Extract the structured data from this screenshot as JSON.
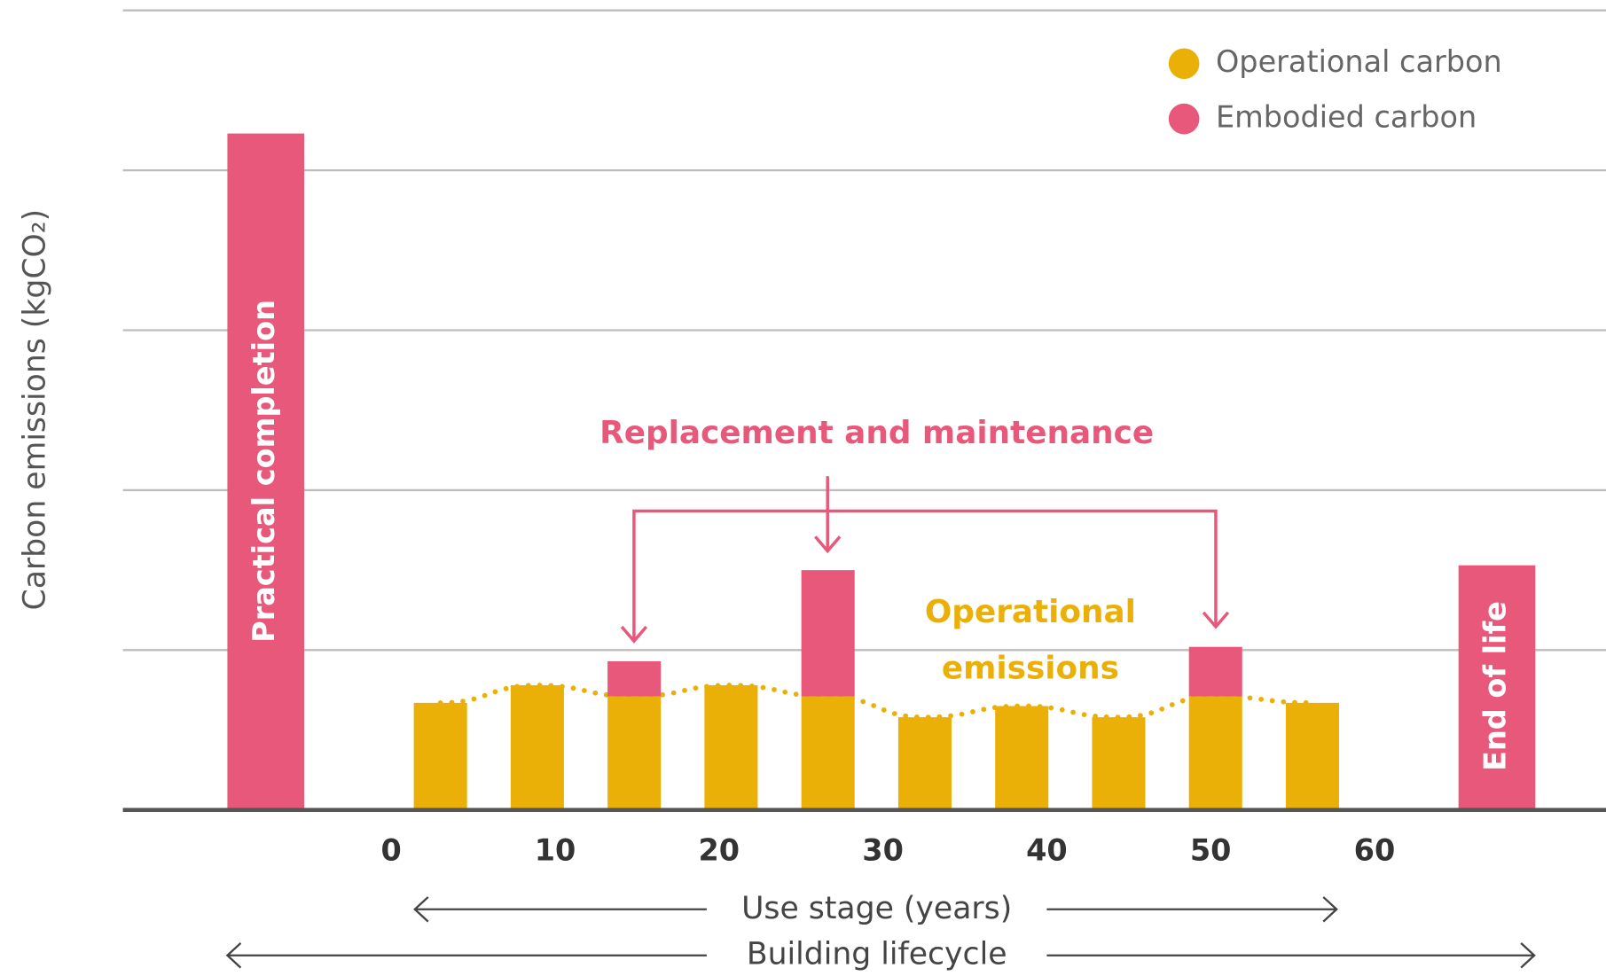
{
  "chart_data": {
    "type": "bar",
    "stacked": true,
    "ylabel": "Carbon emissions (kgCO₂)",
    "xlabel": "Use stage (years)",
    "xlabel2": "Building lifecycle",
    "categories": [
      "Practical completion",
      null,
      null,
      null,
      null,
      null,
      null,
      null,
      null,
      null,
      null,
      "End of life"
    ],
    "series": [
      {
        "name": "Operational carbon",
        "color": "#ebb008",
        "values": [
          null,
          0.67,
          0.78,
          0.71,
          0.78,
          0.71,
          0.58,
          0.65,
          0.58,
          0.71,
          0.67,
          null
        ]
      },
      {
        "name": "Embodied carbon",
        "color": "#e8587a",
        "values": [
          4.23,
          null,
          null,
          0.22,
          null,
          0.79,
          null,
          null,
          null,
          0.31,
          null,
          1.53
        ]
      }
    ],
    "xticks": [
      0,
      10,
      20,
      30,
      40,
      50,
      60
    ],
    "ylim": [
      0,
      5
    ],
    "yticks": [
      0,
      1,
      2,
      3,
      4,
      5
    ],
    "grid": true,
    "legend": "top-right",
    "annotations": [
      "Replacement and maintenance",
      "Operational",
      "emissions"
    ]
  }
}
